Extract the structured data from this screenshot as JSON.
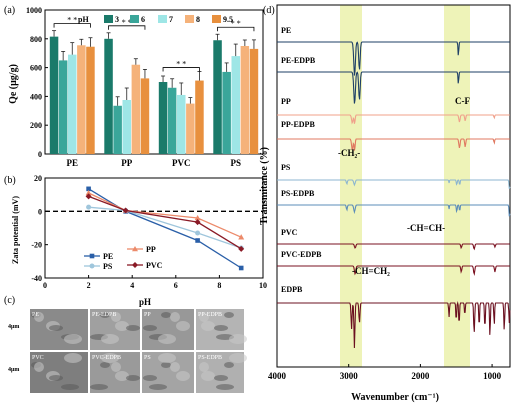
{
  "panels": {
    "a": "(a)",
    "b": "(b)",
    "c": "(c)",
    "d": "(d)"
  },
  "chart_data": [
    {
      "type": "bar",
      "panel": "a",
      "ylabel": "Qe (μg/g)",
      "ylim": [
        0,
        1000
      ],
      "yticks": [
        "0",
        "200",
        "400",
        "600",
        "800",
        "1000"
      ],
      "categories": [
        "PE",
        "PP",
        "PVC",
        "PS"
      ],
      "legend_title": "pH",
      "colors": [
        "#1a7a6a",
        "#3aa69a",
        "#9ee6e6",
        "#f5b27a",
        "#e8903e"
      ],
      "series": [
        {
          "name": "3",
          "values": [
            815,
            800,
            500,
            790
          ]
        },
        {
          "name": "6",
          "values": [
            650,
            335,
            460,
            570
          ]
        },
        {
          "name": "7",
          "values": [
            690,
            375,
            410,
            680
          ]
        },
        {
          "name": "8",
          "values": [
            755,
            620,
            350,
            750
          ]
        },
        {
          "name": "9.5",
          "values": [
            745,
            525,
            510,
            730
          ]
        }
      ],
      "sig": "* *"
    },
    {
      "type": "line",
      "panel": "b",
      "xlabel": "pH",
      "ylabel": "Zata potential (mV)",
      "xlim": [
        0,
        10
      ],
      "ylim": [
        -40,
        20
      ],
      "xticks": [
        "0",
        "2",
        "4",
        "6",
        "8",
        "10"
      ],
      "yticks": [
        "-40",
        "-20",
        "0",
        "20"
      ],
      "series": [
        {
          "name": "PE",
          "color": "#2a5fa8",
          "marker": "square",
          "x": [
            2,
            3.7,
            7,
            9
          ],
          "y": [
            13.5,
            0,
            -17.5,
            -34
          ]
        },
        {
          "name": "PP",
          "color": "#ec8a6a",
          "marker": "triangle",
          "x": [
            2,
            3.7,
            7,
            9
          ],
          "y": [
            11,
            0.5,
            -4,
            -15.5
          ]
        },
        {
          "name": "PS",
          "color": "#9fc6dc",
          "marker": "circle",
          "x": [
            2,
            3.7,
            7,
            9
          ],
          "y": [
            2.5,
            0.5,
            -13,
            -22
          ]
        },
        {
          "name": "PVC",
          "color": "#8a1a26",
          "marker": "diamond",
          "x": [
            2,
            3.7,
            7,
            9
          ],
          "y": [
            9,
            0.5,
            -6.5,
            -22.5
          ]
        }
      ]
    },
    {
      "type": "line",
      "panel": "d",
      "xlabel": "Wavenumber (cm⁻¹)",
      "ylabel": "Transmitance (%)",
      "xlim": [
        4000,
        750
      ],
      "xticks": [
        "4000",
        "3000",
        "2000",
        "1000"
      ],
      "series": [
        {
          "name": "PE",
          "color": "#1e3f66"
        },
        {
          "name": "PE-EDPB",
          "color": "#1e3f66"
        },
        {
          "name": "PP",
          "color": "#f0a08a"
        },
        {
          "name": "PP-EDPB",
          "color": "#e07860"
        },
        {
          "name": "PS",
          "color": "#8cb6d0"
        },
        {
          "name": "PS-EDPB",
          "color": "#5b8cb8"
        },
        {
          "name": "PVC",
          "color": "#7a1020"
        },
        {
          "name": "PVC-EDPB",
          "color": "#7a1020"
        },
        {
          "name": "EDPB",
          "color": "#6b1020"
        }
      ],
      "annotations": [
        "C-F",
        "-CH₂-",
        "-CH=CH-",
        "-CH=CH₂"
      ]
    }
  ],
  "sem": {
    "scale": "4μm",
    "row1": [
      "PE",
      "PE-EDPB",
      "PP",
      "PP-EDPB"
    ],
    "row2": [
      "PVC",
      "PVC-EDPB",
      "PS",
      "PS-EDPB"
    ]
  }
}
